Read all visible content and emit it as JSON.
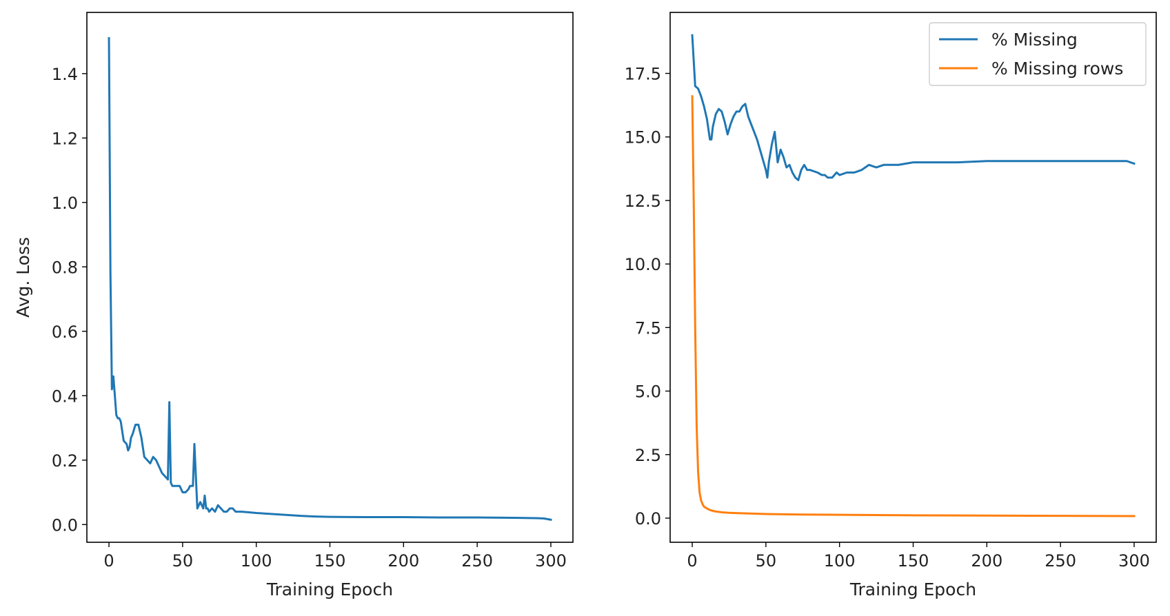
{
  "chart_data": [
    {
      "type": "line",
      "xlabel": "Training Epoch",
      "ylabel": "Avg. Loss",
      "xlim": [
        -15,
        315
      ],
      "ylim": [
        -0.055,
        1.59
      ],
      "xticks": [
        0,
        50,
        100,
        150,
        200,
        250,
        300
      ],
      "yticks": [
        0.0,
        0.2,
        0.4,
        0.6,
        0.8,
        1.0,
        1.2,
        1.4
      ],
      "ytick_decimals": 1,
      "grid": false,
      "legend": null,
      "series": [
        {
          "color": "#1f77b4",
          "x": [
            0,
            1,
            2,
            3,
            4,
            5,
            6,
            7,
            8,
            10,
            12,
            13,
            14,
            15,
            16,
            18,
            20,
            22,
            24,
            26,
            28,
            30,
            32,
            34,
            36,
            38,
            40,
            41,
            42,
            43,
            45,
            48,
            50,
            52,
            54,
            55,
            57,
            58,
            59,
            60,
            62,
            64,
            65,
            66,
            67,
            68,
            70,
            72,
            74,
            76,
            78,
            80,
            82,
            84,
            86,
            90,
            95,
            100,
            110,
            120,
            130,
            140,
            150,
            175,
            200,
            225,
            250,
            275,
            290,
            295,
            300
          ],
          "y": [
            1.51,
            0.78,
            0.42,
            0.46,
            0.4,
            0.34,
            0.33,
            0.33,
            0.32,
            0.26,
            0.25,
            0.23,
            0.24,
            0.27,
            0.28,
            0.31,
            0.31,
            0.27,
            0.21,
            0.2,
            0.19,
            0.21,
            0.2,
            0.18,
            0.16,
            0.15,
            0.14,
            0.38,
            0.13,
            0.12,
            0.12,
            0.12,
            0.1,
            0.1,
            0.11,
            0.12,
            0.12,
            0.25,
            0.15,
            0.05,
            0.07,
            0.05,
            0.09,
            0.05,
            0.05,
            0.04,
            0.05,
            0.04,
            0.06,
            0.05,
            0.04,
            0.04,
            0.05,
            0.05,
            0.04,
            0.04,
            0.038,
            0.036,
            0.033,
            0.03,
            0.027,
            0.025,
            0.024,
            0.023,
            0.023,
            0.022,
            0.022,
            0.021,
            0.02,
            0.019,
            0.015
          ]
        }
      ]
    },
    {
      "type": "line",
      "xlabel": "Training Epoch",
      "ylabel": "",
      "xlim": [
        -15,
        315
      ],
      "ylim": [
        -0.95,
        19.9
      ],
      "xticks": [
        0,
        50,
        100,
        150,
        200,
        250,
        300
      ],
      "yticks": [
        0.0,
        2.5,
        5.0,
        7.5,
        10.0,
        12.5,
        15.0,
        17.5
      ],
      "ytick_decimals": 1,
      "grid": false,
      "legend": "top-right",
      "series": [
        {
          "name": "% Missing",
          "color": "#1f77b4",
          "x": [
            0,
            2,
            4,
            6,
            8,
            10,
            12,
            13,
            14,
            16,
            18,
            20,
            22,
            24,
            26,
            28,
            30,
            32,
            34,
            36,
            38,
            40,
            42,
            44,
            46,
            48,
            50,
            51,
            52,
            54,
            56,
            57,
            58,
            60,
            62,
            64,
            66,
            68,
            70,
            72,
            74,
            76,
            78,
            80,
            85,
            88,
            90,
            92,
            95,
            98,
            100,
            105,
            110,
            115,
            120,
            125,
            130,
            140,
            150,
            160,
            170,
            180,
            200,
            220,
            240,
            260,
            280,
            295,
            300
          ],
          "y": [
            19.0,
            17.0,
            16.9,
            16.6,
            16.2,
            15.7,
            14.9,
            14.9,
            15.4,
            15.9,
            16.1,
            16.0,
            15.6,
            15.1,
            15.5,
            15.8,
            16.0,
            16.0,
            16.2,
            16.3,
            15.8,
            15.5,
            15.2,
            14.9,
            14.5,
            14.1,
            13.7,
            13.4,
            14.0,
            14.7,
            15.2,
            14.6,
            14.0,
            14.5,
            14.2,
            13.8,
            13.9,
            13.6,
            13.4,
            13.3,
            13.7,
            13.9,
            13.7,
            13.7,
            13.6,
            13.5,
            13.5,
            13.4,
            13.4,
            13.6,
            13.5,
            13.6,
            13.6,
            13.7,
            13.9,
            13.8,
            13.9,
            13.9,
            14.0,
            14.0,
            14.0,
            14.0,
            14.05,
            14.05,
            14.05,
            14.05,
            14.05,
            14.05,
            13.95
          ]
        },
        {
          "name": "% Missing rows",
          "color": "#ff7f0e",
          "x": [
            0,
            1,
            2,
            3,
            4,
            5,
            6,
            7,
            8,
            10,
            12,
            15,
            20,
            25,
            30,
            50,
            75,
            100,
            150,
            200,
            250,
            300
          ],
          "y": [
            16.6,
            12.5,
            7.5,
            3.6,
            1.8,
            1.0,
            0.7,
            0.55,
            0.45,
            0.38,
            0.32,
            0.27,
            0.23,
            0.21,
            0.2,
            0.16,
            0.14,
            0.13,
            0.11,
            0.1,
            0.09,
            0.08
          ]
        }
      ]
    }
  ]
}
